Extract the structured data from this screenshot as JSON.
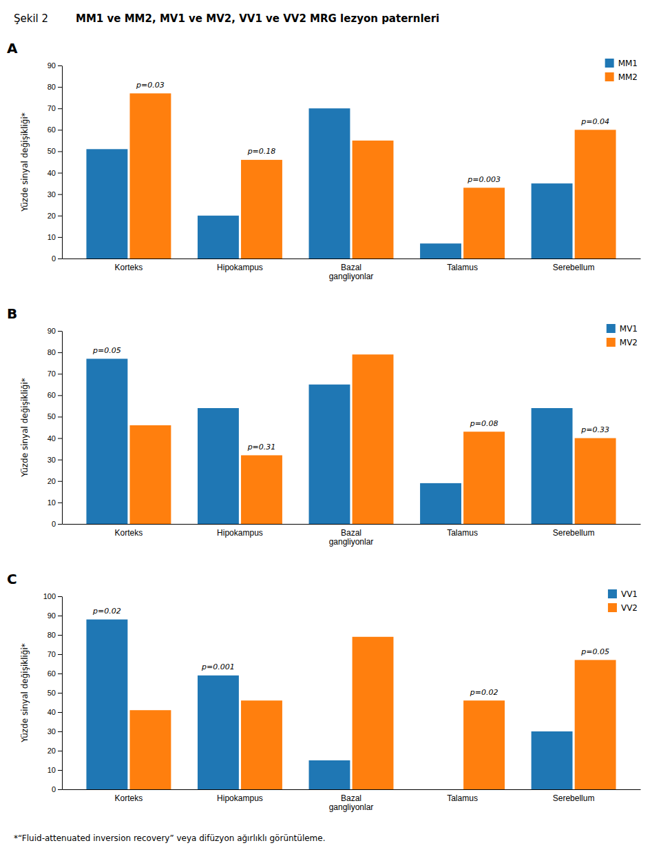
{
  "title": "MM1 ve MM2, MV1 ve MV2, VV1 ve VV2 MRG lezyon paternleri",
  "subtitle": "Şekil 2",
  "footnote": "*“Fluid-attenuated inversion recovery” veya difüzyon ağırlıklı görüntüleme.",
  "chart_data": [
    {
      "type": "bar",
      "title": "A",
      "categories": [
        "Korteks",
        "Hipokampus",
        "Bazal\ngangliyonlar",
        "Talamus",
        "Serebellum"
      ],
      "series": [
        {
          "name": "MM1",
          "values": [
            51,
            20,
            70,
            7,
            35
          ]
        },
        {
          "name": "MM2",
          "values": [
            77,
            46,
            55,
            33,
            60
          ]
        }
      ],
      "ylabel": "Yüzde sinyal değişikliği*",
      "ylim": [
        0,
        90
      ],
      "yticks": [
        0,
        10,
        20,
        30,
        40,
        50,
        60,
        70,
        80,
        90
      ],
      "annotations": [
        {
          "text": "p=0.03",
          "category": "Korteks",
          "series": "MM2"
        },
        {
          "text": "p=0.18",
          "category": "Hipokampus",
          "series": "MM2"
        },
        {
          "text": "p=0.003",
          "category": "Talamus",
          "series": "MM2"
        },
        {
          "text": "p=0.04",
          "category": "Serebellum",
          "series": "MM2"
        }
      ],
      "legend": "upper right",
      "grid": false
    },
    {
      "type": "bar",
      "title": "B",
      "categories": [
        "Korteks",
        "Hipokampus",
        "Bazal\ngangliyonlar",
        "Talamus",
        "Serebellum"
      ],
      "series": [
        {
          "name": "MV1",
          "values": [
            77,
            54,
            65,
            19,
            54
          ]
        },
        {
          "name": "MV2",
          "values": [
            46,
            32,
            79,
            43,
            40
          ]
        }
      ],
      "ylabel": "Yüzde sinyal değişikliği*",
      "ylim": [
        0,
        90
      ],
      "yticks": [
        0,
        10,
        20,
        30,
        40,
        50,
        60,
        70,
        80,
        90
      ],
      "annotations": [
        {
          "text": "p=0.05",
          "category": "Korteks",
          "series": "MV1"
        },
        {
          "text": "p=0.31",
          "category": "Hipokampus",
          "series": "MV2"
        },
        {
          "text": "p=0.08",
          "category": "Talamus",
          "series": "MV2"
        },
        {
          "text": "p=0.33",
          "category": "Serebellum",
          "series": "MV2"
        }
      ],
      "legend": "upper right",
      "grid": false
    },
    {
      "type": "bar",
      "title": "C",
      "categories": [
        "Korteks",
        "Hipokampus",
        "Bazal\ngangliyonlar",
        "Talamus",
        "Serebellum"
      ],
      "series": [
        {
          "name": "VV1",
          "values": [
            88,
            59,
            15,
            0,
            30
          ]
        },
        {
          "name": "VV2",
          "values": [
            41,
            46,
            79,
            46,
            67
          ]
        }
      ],
      "ylabel": "Yüzde sinyal değişikliği*",
      "ylim": [
        0,
        100
      ],
      "yticks": [
        0,
        10,
        20,
        30,
        40,
        50,
        60,
        70,
        80,
        90,
        100
      ],
      "annotations": [
        {
          "text": "p=0.02",
          "category": "Korteks",
          "series": "VV1"
        },
        {
          "text": "p=0.001",
          "category": "Hipokampus",
          "series": "VV1"
        },
        {
          "text": "p=0.02",
          "category": "Talamus",
          "series": "VV2"
        },
        {
          "text": "p=0.05",
          "category": "Serebellum",
          "series": "VV2"
        }
      ],
      "legend": "upper right",
      "grid": false
    }
  ]
}
